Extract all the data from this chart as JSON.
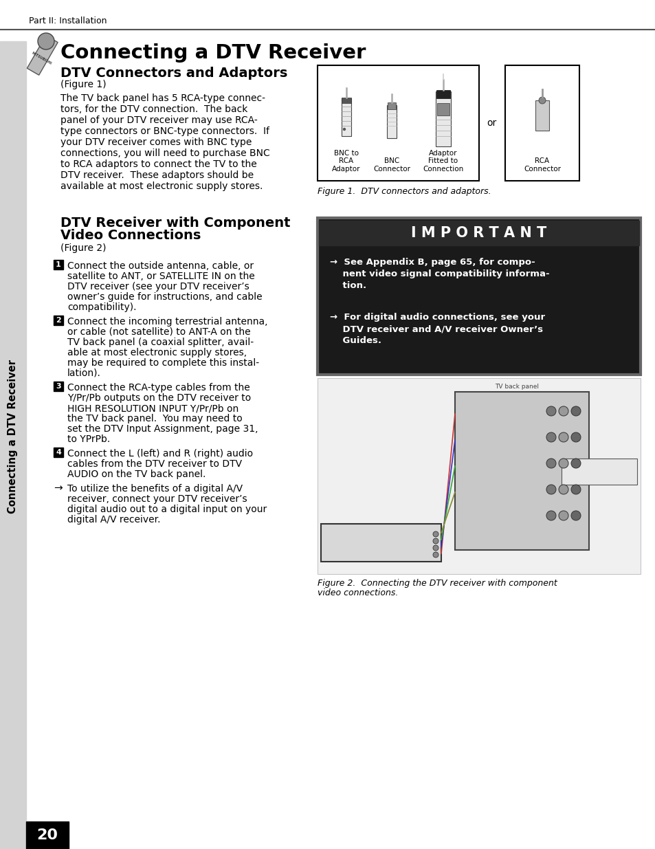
{
  "page_bg": "#ffffff",
  "sidebar_bg": "#d3d3d3",
  "header_text": "Part II: Installation",
  "main_title": "Connecting a DTV Receiver",
  "section1_title": "DTV Connectors and Adaptors",
  "section1_subtitle": "(Figure 1)",
  "section1_body": "The TV back panel has 5 RCA-type connec-\ntors, for the DTV connection.  The back\npanel of your DTV receiver may use RCA-\ntype connectors or BNC-type connectors.  If\nyour DTV receiver comes with BNC type\nconnections, you will need to purchase BNC\nto RCA adaptors to connect the TV to the\nDTV receiver.  These adaptors should be\navailable at most electronic supply stores.",
  "fig1_caption": "Figure 1.  DTV connectors and adaptors.",
  "section2_title_line1": "DTV Receiver with Component",
  "section2_title_line2": "Video Connections",
  "section2_subtitle": "(Figure 2)",
  "important_title": "I M P O R T A N T",
  "important_text1": "→  See Appendix B, page 65, for compo-\n    nent video signal compatibility informa-\n    tion.",
  "important_text2": "→  For digital audio connections, see your\n    DTV receiver and A/V receiver Owner’s\n    Guides.",
  "step1": "Connect the outside antenna, cable, or\nsatellite to ANT, or SATELLITE IN on the\nDTV receiver (see your DTV receiver’s\nowner’s guide for instructions, and cable\ncompatibility).",
  "step2": "Connect the incoming terrestrial antenna,\nor cable (not satellite) to ANT-A on the\nTV back panel (a coaxial splitter, avail-\nable at most electronic supply stores,\nmay be required to complete this instal-\nlation).",
  "step3": "Connect the RCA-type cables from the\nY/Pr/Pb outputs on the DTV receiver to\nHIGH RESOLUTION INPUT Y/Pr/Pb on\nthe TV back panel.  You may need to\nset the DTV Input Assignment, page 31,\nto YPrPb.",
  "step4": "Connect the L (left) and R (right) audio\ncables from the DTV receiver to DTV\nAUDIO on the TV back panel.",
  "step_arrow": "To utilize the benefits of a digital A/V\nreceiver, connect your DTV receiver’s\ndigital audio out to a digital input on your\ndigital A/V receiver.",
  "fig2_caption_line1": "Figure 2.  Connecting the DTV receiver with component",
  "fig2_caption_line2": "video connections.",
  "page_number": "20",
  "sidebar_label": "Connecting a DTV Receiver",
  "header_line_color": "#555555"
}
